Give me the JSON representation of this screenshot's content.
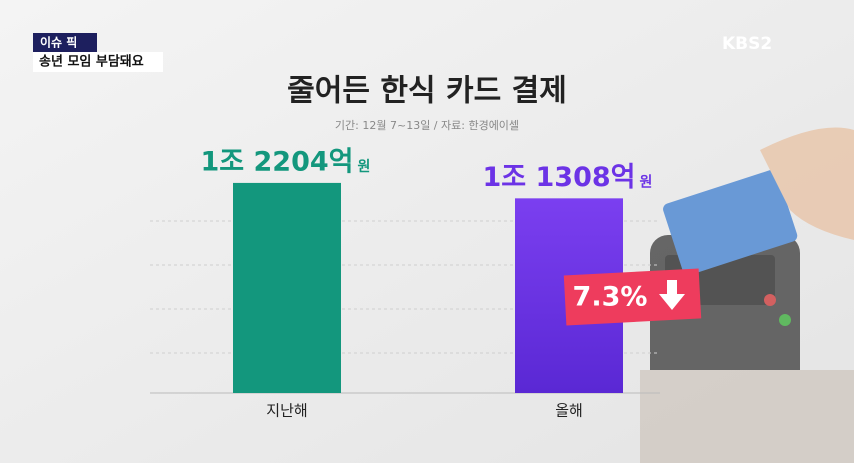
{
  "header": {
    "badge": "이슈 픽",
    "caption": "송년 모임 부담돼요",
    "channel": "KBS2"
  },
  "chart_data": {
    "type": "bar",
    "title": "줄어든 한식 카드 결제",
    "subtitle": "기간: 12월 7~13일  /  자료: 한경에이셀",
    "categories": [
      "지난해",
      "올해"
    ],
    "values": [
      12204,
      11308
    ],
    "value_labels": [
      "1조 2204억",
      "1조 1308억"
    ],
    "value_unit": "원",
    "colors": [
      "#13977d",
      "#6c33e6"
    ],
    "ylim": [
      0,
      14000
    ],
    "annotation": "7.3%"
  }
}
